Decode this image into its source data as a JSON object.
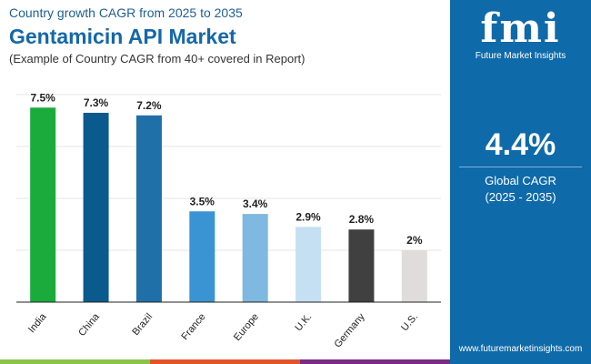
{
  "header": {
    "subtitle": "Country growth CAGR from 2025 to 2035",
    "title": "Gentamicin API Market",
    "note": "(Example of Country CAGR from 40+ covered in Report)"
  },
  "panel": {
    "logo_text": "fmi",
    "logo_caption": "Future Market Insights",
    "value": "4.4%",
    "label": "Global CAGR",
    "range": "(2025 - 2035)",
    "url": "www.futuremarketinsights.com",
    "color": "#0f6aa9"
  },
  "chart_data": {
    "type": "bar",
    "categories": [
      "India",
      "China",
      "Brazil",
      "France",
      "Europe",
      "U.K.",
      "Germany",
      "U.S."
    ],
    "values": [
      7.5,
      7.3,
      7.2,
      3.5,
      3.4,
      2.9,
      2.8,
      2
    ],
    "labels": [
      "7.5%",
      "7.3%",
      "7.2%",
      "3.5%",
      "3.4%",
      "2.9%",
      "2.8%",
      "2%"
    ],
    "colors": [
      "#1aab3c",
      "#0b5a8e",
      "#1f6fa8",
      "#3a93d3",
      "#7fb8e0",
      "#c5e0f2",
      "#404040",
      "#e0dcdc"
    ],
    "ylim": [
      0,
      8
    ],
    "grid": true,
    "xlabel": "",
    "ylabel": ""
  }
}
